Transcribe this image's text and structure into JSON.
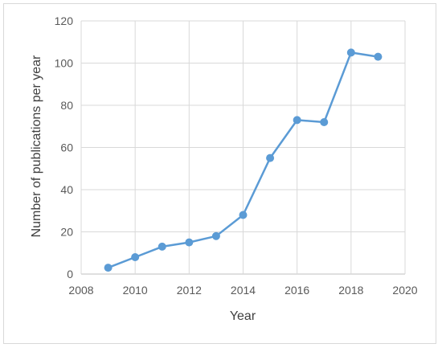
{
  "chart_data": {
    "type": "line",
    "title": "",
    "xlabel": "Year",
    "ylabel": "Number of publications per year",
    "xlim": [
      2008,
      2020
    ],
    "ylim": [
      0,
      120
    ],
    "x_ticks": [
      2008,
      2010,
      2012,
      2014,
      2016,
      2018,
      2020
    ],
    "y_ticks": [
      0,
      20,
      40,
      60,
      80,
      100,
      120
    ],
    "grid": true,
    "legend": "none",
    "series": [
      {
        "color": "#5b9bd5",
        "x": [
          2009,
          2010,
          2011,
          2012,
          2013,
          2014,
          2015,
          2016,
          2017,
          2018,
          2019
        ],
        "y": [
          3,
          8,
          13,
          15,
          18,
          28,
          55,
          73,
          72,
          105,
          103
        ]
      }
    ]
  }
}
